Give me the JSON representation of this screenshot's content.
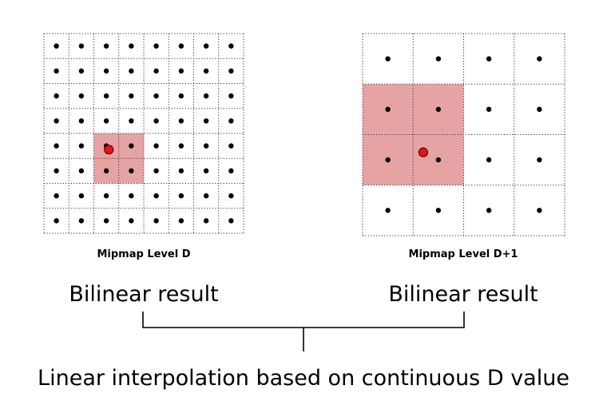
{
  "level_d": {
    "caption": "Mipmap Level D",
    "grid_size": 8,
    "highlight_cells": {
      "col_start": 2,
      "row_start": 4,
      "cols": 2,
      "rows": 2
    },
    "sample_point": {
      "col": 2.6,
      "row": 4.65
    }
  },
  "level_d1": {
    "caption": "Mipmap Level D+1",
    "grid_size": 4,
    "highlight_cells": {
      "col_start": 0,
      "row_start": 1,
      "cols": 2,
      "rows": 2
    },
    "sample_point": {
      "col": 1.2,
      "row": 2.35
    }
  },
  "labels": {
    "left_result": "Bilinear result",
    "right_result": "Bilinear result",
    "bottom": "Linear interpolation based on continuous D value"
  },
  "colors": {
    "highlight": "#e6a3a3",
    "sample": "#e8161c",
    "dot": "#000000"
  }
}
